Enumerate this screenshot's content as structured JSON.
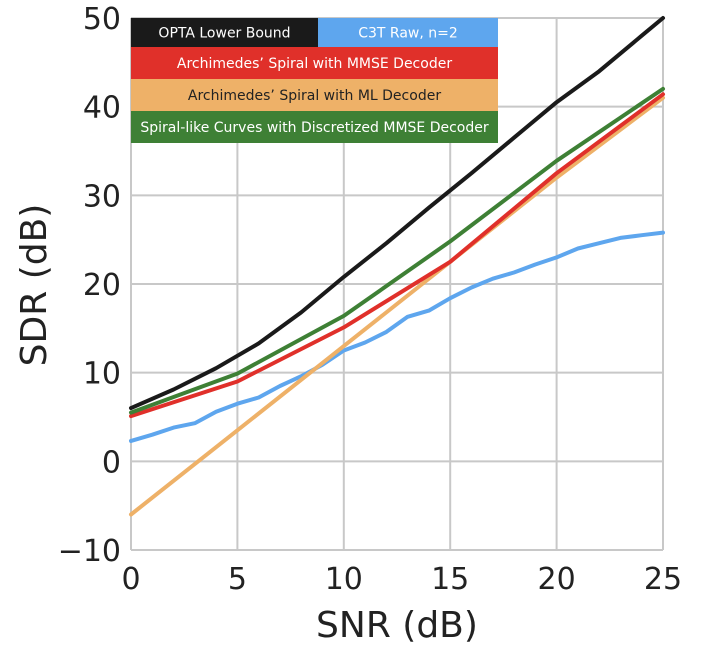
{
  "chart_data": {
    "type": "line",
    "xlabel": "SNR (dB)",
    "ylabel": "SDR (dB)",
    "xlim": [
      0,
      25
    ],
    "ylim": [
      -10,
      50
    ],
    "xticks": [
      0,
      5,
      10,
      15,
      20,
      25
    ],
    "yticks": [
      -10,
      0,
      10,
      20,
      30,
      40,
      50
    ],
    "xtick_labels": [
      "0",
      "5",
      "10",
      "15",
      "20",
      "25"
    ],
    "ytick_labels": [
      "−10",
      "0",
      "10",
      "20",
      "30",
      "40",
      "50"
    ],
    "grid": true,
    "legend_position": "top-left",
    "series": [
      {
        "name": "OPTA Lower Bound",
        "color": "#1a1a1a",
        "text_color": "#ffffff",
        "x": [
          0,
          2,
          4,
          6,
          8,
          10,
          12,
          14,
          16,
          18,
          20,
          22,
          24,
          25
        ],
        "y": [
          6.0,
          8.1,
          10.5,
          13.3,
          16.8,
          20.8,
          24.6,
          28.6,
          32.5,
          36.5,
          40.5,
          44.0,
          48.0,
          50.0
        ]
      },
      {
        "name": "C3T Raw, n=2",
        "color": "#5ea6ee",
        "text_color": "#ffffff",
        "x": [
          0,
          1,
          2,
          3,
          4,
          5,
          6,
          7,
          8,
          9,
          10,
          11,
          12,
          13,
          14,
          15,
          16,
          17,
          18,
          19,
          20,
          21,
          22,
          23,
          24,
          25
        ],
        "y": [
          2.3,
          3.0,
          3.8,
          4.3,
          5.6,
          6.5,
          7.2,
          8.5,
          9.6,
          10.9,
          12.5,
          13.4,
          14.6,
          16.3,
          17.0,
          18.4,
          19.6,
          20.6,
          21.3,
          22.2,
          23.0,
          24.0,
          24.6,
          25.2,
          25.5,
          25.8
        ]
      },
      {
        "name": "Archimedes’ Spiral with MMSE Decoder",
        "color": "#e0302a",
        "text_color": "#ffffff",
        "x": [
          0,
          5,
          10,
          15,
          20,
          25
        ],
        "y": [
          5.1,
          9.0,
          15.1,
          22.5,
          32.5,
          41.4
        ]
      },
      {
        "name": "Archimedes’ Spiral with ML Decoder",
        "color": "#eeb168",
        "text_color": "#222222",
        "x": [
          0,
          5,
          10,
          15,
          20,
          25
        ],
        "y": [
          -6.0,
          3.5,
          13.0,
          22.5,
          32.0,
          41.0
        ]
      },
      {
        "name": "Spiral-like Curves with Discretized MMSE Decoder",
        "color": "#3e8035",
        "text_color": "#ffffff",
        "x": [
          0,
          5,
          10,
          15,
          20,
          25
        ],
        "y": [
          5.5,
          9.9,
          16.4,
          24.8,
          33.9,
          42.0
        ]
      }
    ]
  }
}
